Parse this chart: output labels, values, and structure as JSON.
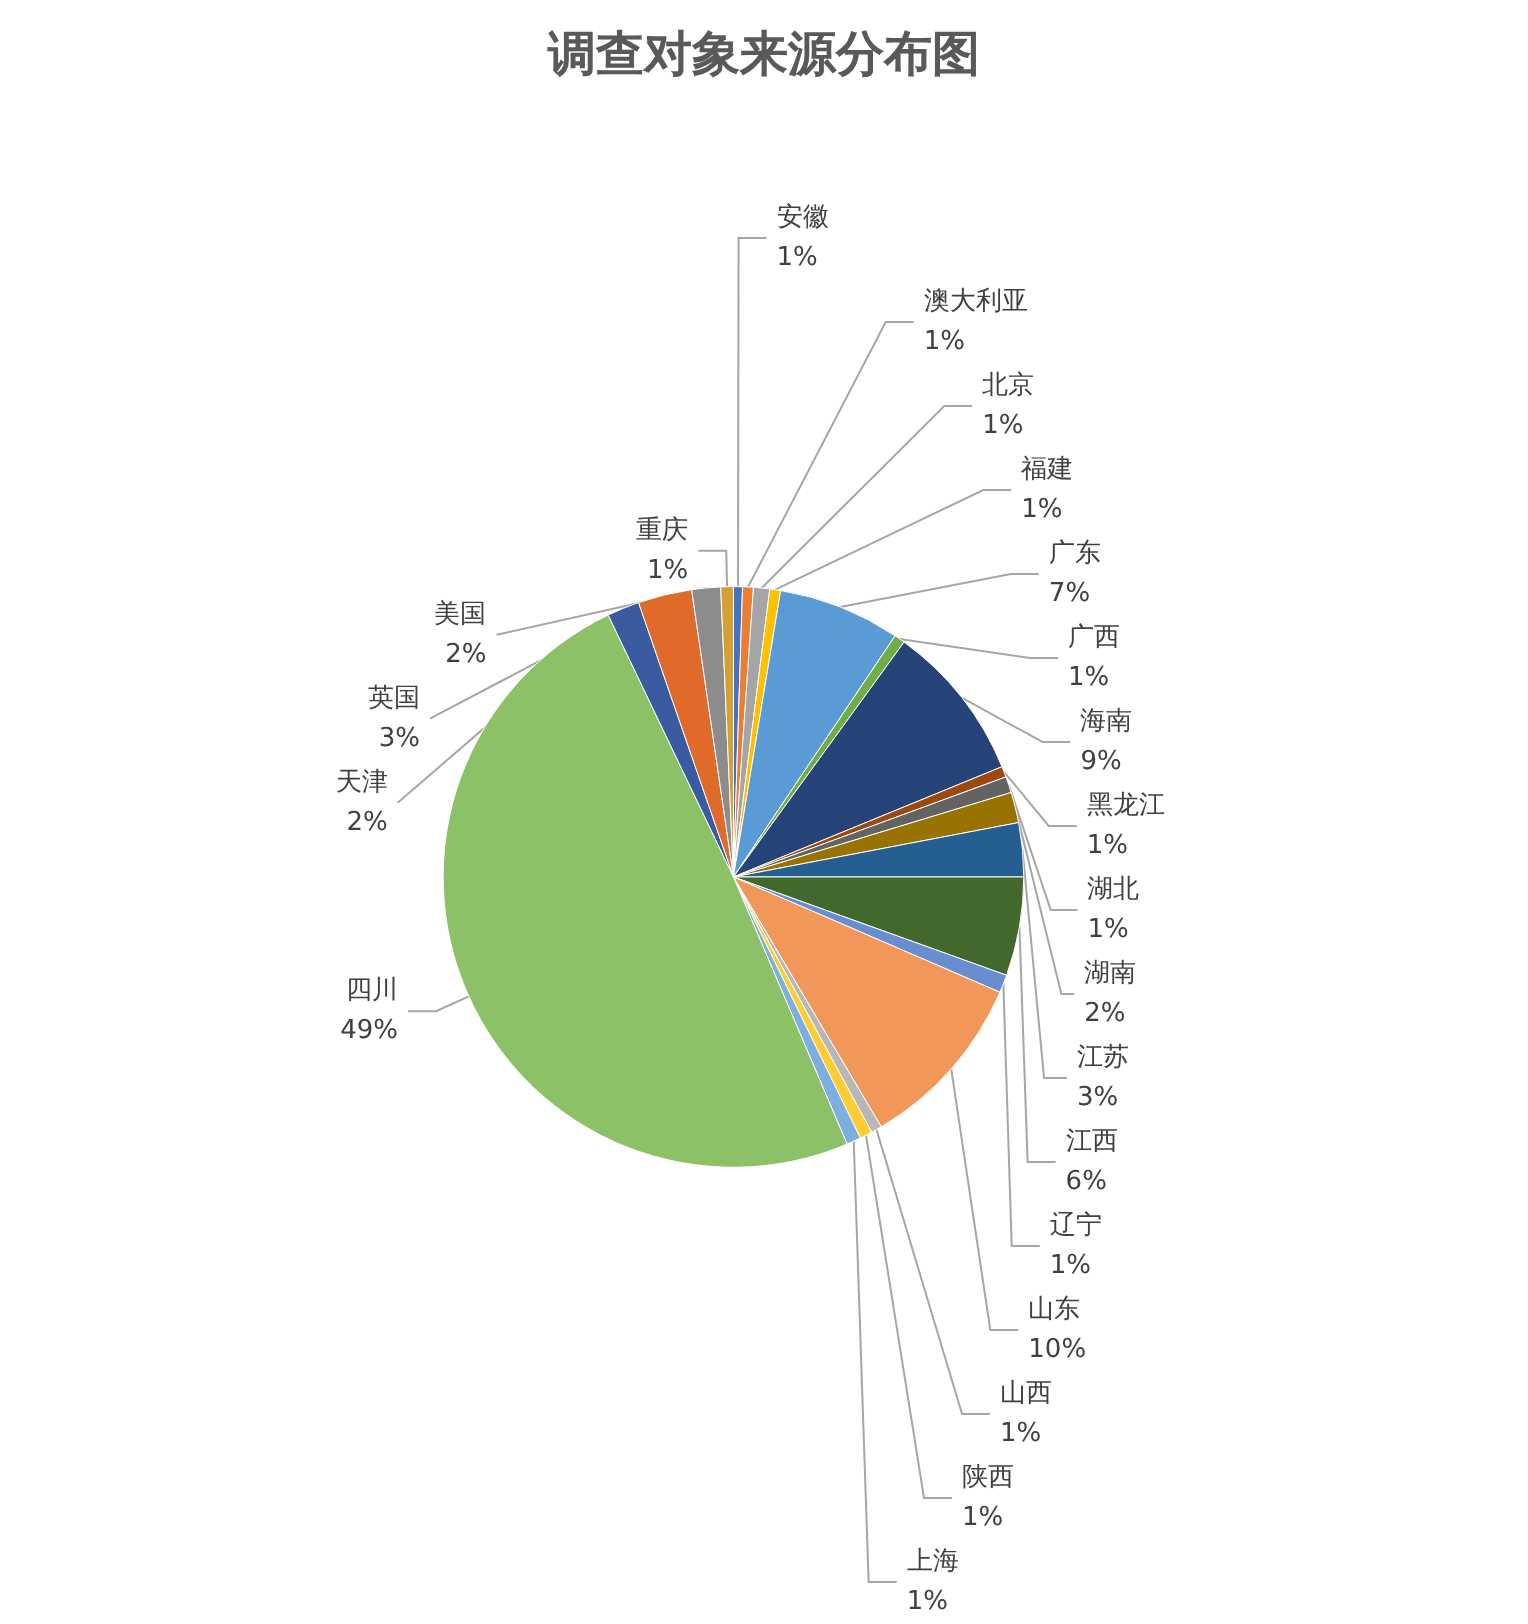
{
  "chart_data": {
    "type": "pie",
    "title": "调查对象来源分布图",
    "categories": [
      "安徽",
      "澳大利亚",
      "北京",
      "福建",
      "广东",
      "广西",
      "海南",
      "黑龙江",
      "湖北",
      "湖南",
      "江苏",
      "江西",
      "辽宁",
      "山东",
      "山西",
      "陕西",
      "上海",
      "四川",
      "天津",
      "英国",
      "美国",
      "重庆"
    ],
    "values": [
      0.5,
      0.6,
      0.9,
      0.6,
      6.8,
      0.6,
      8.8,
      0.6,
      0.9,
      1.7,
      3,
      5.5,
      1,
      10,
      0.6,
      0.7,
      0.8,
      49.3,
      1.8,
      3,
      1.6,
      0.7
    ],
    "value_labels": [
      "1%",
      "1%",
      "1%",
      "1%",
      "7%",
      "1%",
      "9%",
      "1%",
      "1%",
      "2%",
      "3%",
      "6%",
      "1%",
      "10%",
      "1%",
      "1%",
      "1%",
      "49%",
      "2%",
      "3%",
      "2%",
      "1%"
    ],
    "colors": [
      "#4472c4",
      "#ed7d31",
      "#a5a5a5",
      "#ffc000",
      "#5b9bd5",
      "#70ad47",
      "#264478",
      "#9e480e",
      "#636363",
      "#997300",
      "#255e91",
      "#43682b",
      "#698ed0",
      "#f1975a",
      "#b7b7b7",
      "#ffcd33",
      "#7cafdd",
      "#8cc168",
      "#3a5ba0",
      "#e06a2a",
      "#8c8c8c",
      "#d4a033"
    ],
    "legend": false
  }
}
